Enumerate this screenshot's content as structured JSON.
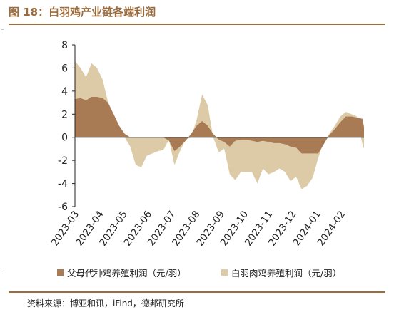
{
  "figure": {
    "title": "图 18：白羽鸡产业链各端利润",
    "source": "资料来源：博亚和讯，iFind，德邦研究所"
  },
  "colors": {
    "accent": "#9c6b3c",
    "series_parent": "#a87b55",
    "series_broiler": "#dccba6",
    "axis": "#222222"
  },
  "chart_data": {
    "type": "area",
    "title": "",
    "xlabel": "",
    "ylabel": "",
    "ylim": [
      -6,
      8
    ],
    "yticks": [
      -6,
      -4,
      -2,
      0,
      2,
      4,
      6,
      8
    ],
    "grid": false,
    "legend_position": "bottom",
    "x_tick_labels": [
      "2023-03",
      "2023-04",
      "2023-05",
      "2023-06",
      "2023-07",
      "2023-08",
      "2023-09",
      "2023-10",
      "2023-11",
      "2023-12",
      "2024-01",
      "2024-02"
    ],
    "x_start": "2023-03",
    "x_end": "2024-03",
    "series": [
      {
        "name": "父母代种鸡养殖利润（元/羽）",
        "color": "#a87b55",
        "points": [
          [
            "2023-03-01",
            3.3
          ],
          [
            "2023-03-08",
            3.4
          ],
          [
            "2023-03-15",
            3.2
          ],
          [
            "2023-03-22",
            3.5
          ],
          [
            "2023-03-29",
            3.5
          ],
          [
            "2023-04-05",
            3.4
          ],
          [
            "2023-04-12",
            3.0
          ],
          [
            "2023-04-19",
            2.0
          ],
          [
            "2023-04-26",
            1.0
          ],
          [
            "2023-05-03",
            0.3
          ],
          [
            "2023-05-10",
            0.0
          ],
          [
            "2023-05-17",
            0.0
          ],
          [
            "2023-05-24",
            0.0
          ],
          [
            "2023-05-31",
            0.0
          ],
          [
            "2023-06-07",
            0.0
          ],
          [
            "2023-06-14",
            0.0
          ],
          [
            "2023-06-21",
            0.0
          ],
          [
            "2023-06-28",
            -0.3
          ],
          [
            "2023-07-05",
            -1.2
          ],
          [
            "2023-07-12",
            -0.8
          ],
          [
            "2023-07-19",
            -0.3
          ],
          [
            "2023-07-26",
            0.3
          ],
          [
            "2023-08-02",
            1.0
          ],
          [
            "2023-08-09",
            1.4
          ],
          [
            "2023-08-16",
            1.0
          ],
          [
            "2023-08-23",
            0.3
          ],
          [
            "2023-08-30",
            -0.2
          ],
          [
            "2023-09-06",
            -0.4
          ],
          [
            "2023-09-13",
            -0.8
          ],
          [
            "2023-09-20",
            -0.3
          ],
          [
            "2023-09-27",
            -0.2
          ],
          [
            "2023-10-04",
            -0.2
          ],
          [
            "2023-10-11",
            -0.3
          ],
          [
            "2023-10-18",
            -0.4
          ],
          [
            "2023-10-25",
            -0.3
          ],
          [
            "2023-11-01",
            -0.4
          ],
          [
            "2023-11-08",
            -0.5
          ],
          [
            "2023-11-15",
            -0.5
          ],
          [
            "2023-11-22",
            -0.6
          ],
          [
            "2023-11-29",
            -0.8
          ],
          [
            "2023-12-06",
            -0.9
          ],
          [
            "2023-12-13",
            -1.4
          ],
          [
            "2023-12-20",
            -1.4
          ],
          [
            "2023-12-27",
            -1.4
          ],
          [
            "2024-01-03",
            -1.4
          ],
          [
            "2024-01-10",
            -0.6
          ],
          [
            "2024-01-17",
            0.2
          ],
          [
            "2024-01-24",
            0.7
          ],
          [
            "2024-01-31",
            1.3
          ],
          [
            "2024-02-07",
            1.8
          ],
          [
            "2024-02-14",
            1.8
          ],
          [
            "2024-02-21",
            1.7
          ],
          [
            "2024-02-28",
            1.6
          ],
          [
            "2024-03-01",
            0.9
          ]
        ]
      },
      {
        "name": "白羽肉鸡养殖利润（元/羽）",
        "color": "#dccba6",
        "points": [
          [
            "2023-03-01",
            6.6
          ],
          [
            "2023-03-08",
            6.0
          ],
          [
            "2023-03-15",
            5.2
          ],
          [
            "2023-03-22",
            6.4
          ],
          [
            "2023-03-29",
            6.0
          ],
          [
            "2023-04-05",
            5.0
          ],
          [
            "2023-04-12",
            3.0
          ],
          [
            "2023-04-19",
            1.6
          ],
          [
            "2023-04-26",
            0.8
          ],
          [
            "2023-05-03",
            0.0
          ],
          [
            "2023-05-10",
            -0.8
          ],
          [
            "2023-05-17",
            -2.4
          ],
          [
            "2023-05-24",
            -2.6
          ],
          [
            "2023-05-31",
            -1.6
          ],
          [
            "2023-06-07",
            -1.4
          ],
          [
            "2023-06-14",
            -1.2
          ],
          [
            "2023-06-21",
            -1.1
          ],
          [
            "2023-06-28",
            -0.2
          ],
          [
            "2023-07-05",
            -2.4
          ],
          [
            "2023-07-12",
            -1.2
          ],
          [
            "2023-07-19",
            -0.2
          ],
          [
            "2023-07-26",
            0.0
          ],
          [
            "2023-08-02",
            1.5
          ],
          [
            "2023-08-09",
            3.7
          ],
          [
            "2023-08-16",
            2.8
          ],
          [
            "2023-08-23",
            0.0
          ],
          [
            "2023-08-30",
            -1.3
          ],
          [
            "2023-09-06",
            -1.0
          ],
          [
            "2023-09-13",
            -3.2
          ],
          [
            "2023-09-20",
            -3.7
          ],
          [
            "2023-09-27",
            -3.0
          ],
          [
            "2023-10-04",
            -3.0
          ],
          [
            "2023-10-11",
            -3.0
          ],
          [
            "2023-10-18",
            -4.0
          ],
          [
            "2023-10-25",
            -2.7
          ],
          [
            "2023-11-01",
            -3.2
          ],
          [
            "2023-11-08",
            -3.0
          ],
          [
            "2023-11-15",
            -2.7
          ],
          [
            "2023-11-22",
            -3.0
          ],
          [
            "2023-11-29",
            -3.8
          ],
          [
            "2023-12-06",
            -3.4
          ],
          [
            "2023-12-13",
            -4.5
          ],
          [
            "2023-12-20",
            -4.2
          ],
          [
            "2023-12-27",
            -3.5
          ],
          [
            "2024-01-03",
            -1.8
          ],
          [
            "2024-01-10",
            -0.4
          ],
          [
            "2024-01-17",
            0.3
          ],
          [
            "2024-01-24",
            1.0
          ],
          [
            "2024-01-31",
            1.8
          ],
          [
            "2024-02-07",
            2.2
          ],
          [
            "2024-02-14",
            2.0
          ],
          [
            "2024-02-21",
            1.8
          ],
          [
            "2024-02-28",
            -0.6
          ],
          [
            "2024-03-01",
            -1.0
          ]
        ]
      }
    ]
  }
}
